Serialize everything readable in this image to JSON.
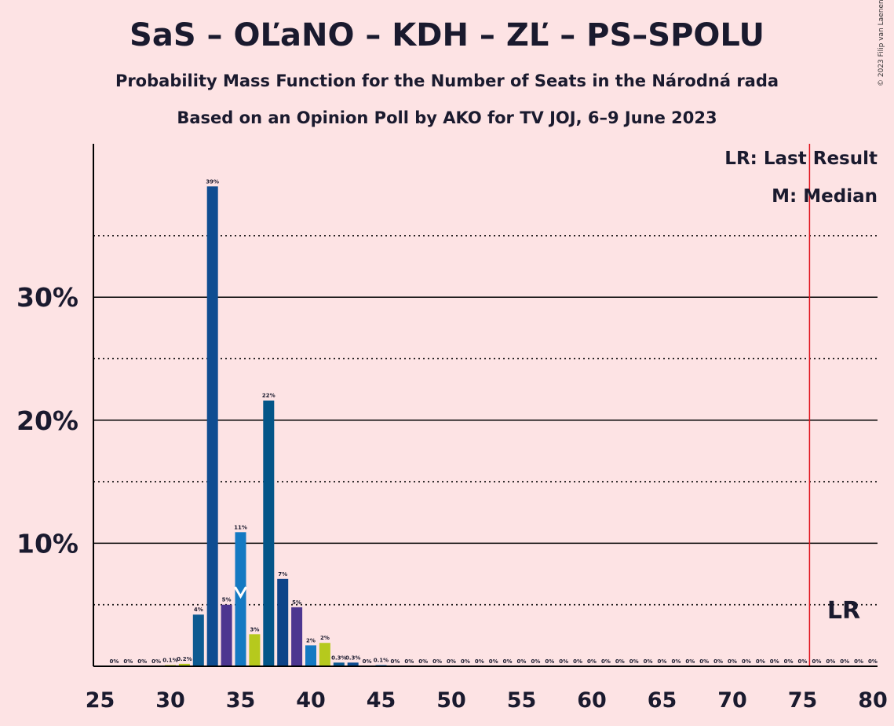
{
  "title": "SaS – OĽaNO – KDH – ZĽ – PS–SPOLU",
  "subtitle": "Probability Mass Function for the Number of Seats in the Národná rada",
  "subtitle2": "Based on an Opinion Poll by AKO for TV JOJ, 6–9 June 2023",
  "copyright": "© 2023 Filip van Laenen",
  "legend": {
    "lr": "LR: Last Result",
    "m": "M: Median"
  },
  "lr_marker_label": "LR",
  "median_marker_label": "M",
  "colors": {
    "background": "#fde3e4",
    "lr_line": "#e0101a",
    "grid": "#000000"
  },
  "chart_data": {
    "type": "bar",
    "xlim": [
      25,
      80
    ],
    "ylim": [
      0,
      42
    ],
    "x_ticks": [
      25,
      30,
      35,
      40,
      45,
      50,
      55,
      60,
      65,
      70,
      75,
      80
    ],
    "y_ticks": [
      {
        "value": 10,
        "label": "10%"
      },
      {
        "value": 20,
        "label": "20%"
      },
      {
        "value": 30,
        "label": "30%"
      }
    ],
    "dotted_gridlines": [
      5,
      15,
      25,
      35
    ],
    "last_result": 76,
    "median": 35,
    "values": [
      {
        "x": 26,
        "value": 0,
        "label": "0%",
        "color": "#1f4f9b"
      },
      {
        "x": 27,
        "value": 0,
        "label": "0%",
        "color": "#1f4f9b"
      },
      {
        "x": 28,
        "value": 0,
        "label": "0%",
        "color": "#1f4f9b"
      },
      {
        "x": 29,
        "value": 0,
        "label": "0%",
        "color": "#1f4f9b"
      },
      {
        "x": 30,
        "value": 0.1,
        "label": "0.1%",
        "color": "#b6c91d"
      },
      {
        "x": 31,
        "value": 0.2,
        "label": "0.2%",
        "color": "#b6c91d"
      },
      {
        "x": 32,
        "value": 4.2,
        "label": "4%",
        "color": "#0d5a91"
      },
      {
        "x": 33,
        "value": 39,
        "label": "39%",
        "color": "#0f4d91"
      },
      {
        "x": 34,
        "value": 5,
        "label": "5%",
        "color": "#4d3690"
      },
      {
        "x": 35,
        "value": 10.9,
        "label": "11%",
        "color": "#1479c2"
      },
      {
        "x": 36,
        "value": 2.6,
        "label": "3%",
        "color": "#b6c91d"
      },
      {
        "x": 37,
        "value": 21.6,
        "label": "22%",
        "color": "#035588"
      },
      {
        "x": 38,
        "value": 7.1,
        "label": "7%",
        "color": "#0e4489"
      },
      {
        "x": 39,
        "value": 4.8,
        "label": "5%",
        "color": "#4d3690"
      },
      {
        "x": 40,
        "value": 1.7,
        "label": "2%",
        "color": "#1479c2"
      },
      {
        "x": 41,
        "value": 1.9,
        "label": "2%",
        "color": "#b6c91d"
      },
      {
        "x": 42,
        "value": 0.3,
        "label": "0.3%",
        "color": "#0d5a91"
      },
      {
        "x": 43,
        "value": 0.3,
        "label": "0.3%",
        "color": "#0f4d91"
      },
      {
        "x": 44,
        "value": 0,
        "label": "0%",
        "color": "#1f4f9b"
      },
      {
        "x": 45,
        "value": 0.1,
        "label": "0.1%",
        "color": "#1479c2"
      },
      {
        "x": 46,
        "value": 0,
        "label": "0%",
        "color": "#1f4f9b"
      },
      {
        "x": 47,
        "value": 0,
        "label": "0%",
        "color": "#1f4f9b"
      },
      {
        "x": 48,
        "value": 0,
        "label": "0%",
        "color": "#1f4f9b"
      },
      {
        "x": 49,
        "value": 0,
        "label": "0%",
        "color": "#1f4f9b"
      },
      {
        "x": 50,
        "value": 0,
        "label": "0%",
        "color": "#1f4f9b"
      },
      {
        "x": 51,
        "value": 0,
        "label": "0%",
        "color": "#1f4f9b"
      },
      {
        "x": 52,
        "value": 0,
        "label": "0%",
        "color": "#1f4f9b"
      },
      {
        "x": 53,
        "value": 0,
        "label": "0%",
        "color": "#1f4f9b"
      },
      {
        "x": 54,
        "value": 0,
        "label": "0%",
        "color": "#1f4f9b"
      },
      {
        "x": 55,
        "value": 0,
        "label": "0%",
        "color": "#1f4f9b"
      },
      {
        "x": 56,
        "value": 0,
        "label": "0%",
        "color": "#1f4f9b"
      },
      {
        "x": 57,
        "value": 0,
        "label": "0%",
        "color": "#1f4f9b"
      },
      {
        "x": 58,
        "value": 0,
        "label": "0%",
        "color": "#1f4f9b"
      },
      {
        "x": 59,
        "value": 0,
        "label": "0%",
        "color": "#1f4f9b"
      },
      {
        "x": 60,
        "value": 0,
        "label": "0%",
        "color": "#1f4f9b"
      },
      {
        "x": 61,
        "value": 0,
        "label": "0%",
        "color": "#1f4f9b"
      },
      {
        "x": 62,
        "value": 0,
        "label": "0%",
        "color": "#1f4f9b"
      },
      {
        "x": 63,
        "value": 0,
        "label": "0%",
        "color": "#1f4f9b"
      },
      {
        "x": 64,
        "value": 0,
        "label": "0%",
        "color": "#1f4f9b"
      },
      {
        "x": 65,
        "value": 0,
        "label": "0%",
        "color": "#1f4f9b"
      },
      {
        "x": 66,
        "value": 0,
        "label": "0%",
        "color": "#1f4f9b"
      },
      {
        "x": 67,
        "value": 0,
        "label": "0%",
        "color": "#1f4f9b"
      },
      {
        "x": 68,
        "value": 0,
        "label": "0%",
        "color": "#1f4f9b"
      },
      {
        "x": 69,
        "value": 0,
        "label": "0%",
        "color": "#1f4f9b"
      },
      {
        "x": 70,
        "value": 0,
        "label": "0%",
        "color": "#1f4f9b"
      },
      {
        "x": 71,
        "value": 0,
        "label": "0%",
        "color": "#1f4f9b"
      },
      {
        "x": 72,
        "value": 0,
        "label": "0%",
        "color": "#1f4f9b"
      },
      {
        "x": 73,
        "value": 0,
        "label": "0%",
        "color": "#1f4f9b"
      },
      {
        "x": 74,
        "value": 0,
        "label": "0%",
        "color": "#1f4f9b"
      },
      {
        "x": 75,
        "value": 0,
        "label": "0%",
        "color": "#1f4f9b"
      },
      {
        "x": 76,
        "value": 0,
        "label": "0%",
        "color": "#1f4f9b"
      },
      {
        "x": 77,
        "value": 0,
        "label": "0%",
        "color": "#1f4f9b"
      },
      {
        "x": 78,
        "value": 0,
        "label": "0%",
        "color": "#1f4f9b"
      },
      {
        "x": 79,
        "value": 0,
        "label": "0%",
        "color": "#1f4f9b"
      },
      {
        "x": 80,
        "value": 0,
        "label": "0%",
        "color": "#1f4f9b"
      }
    ]
  }
}
